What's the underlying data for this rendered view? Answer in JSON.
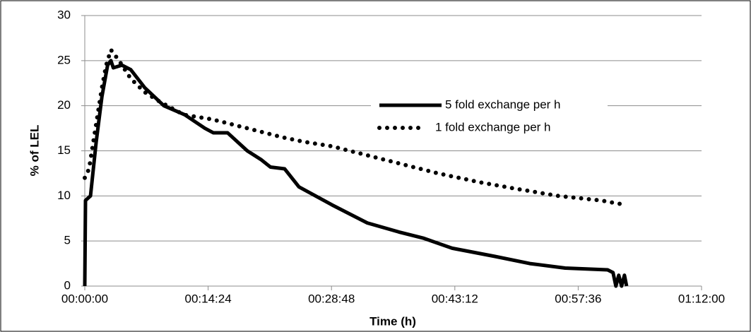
{
  "chart_data": {
    "type": "line",
    "x_label": "Time (h)",
    "y_label": "% of LEL",
    "xlim": [
      0,
      4320
    ],
    "xticks": [
      {
        "value": 0,
        "label": "00:00:00"
      },
      {
        "value": 864,
        "label": "00:14:24"
      },
      {
        "value": 1728,
        "label": "00:28:48"
      },
      {
        "value": 2592,
        "label": "00:43:12"
      },
      {
        "value": 3456,
        "label": "00:57:36"
      },
      {
        "value": 4320,
        "label": "01:12:00"
      }
    ],
    "ylim": [
      0,
      30
    ],
    "yticks": [
      0,
      5,
      10,
      15,
      20,
      25,
      30
    ],
    "grid": true,
    "legend": "upper-right",
    "series": [
      {
        "name": "5 fold exchange per h",
        "color": "#000000",
        "style": "solid",
        "x": [
          0,
          5,
          40,
          80,
          120,
          160,
          183,
          200,
          260,
          322,
          420,
          554,
          700,
          841,
          900,
          1000,
          1138,
          1237,
          1300,
          1400,
          1500,
          1732,
          1979,
          2200,
          2375,
          2573,
          2870,
          3117,
          3365,
          3662,
          3700,
          3720,
          3740,
          3760,
          3780,
          3795
        ],
        "values": [
          0,
          9.5,
          10,
          16,
          21,
          24.5,
          25,
          24.2,
          24.5,
          24,
          22,
          20,
          19,
          17.5,
          17,
          17,
          15,
          14,
          13.2,
          13,
          11,
          9,
          7,
          6,
          5.3,
          4.2,
          3.3,
          2.5,
          2,
          1.8,
          1.5,
          0,
          1.2,
          0,
          1.2,
          0
        ]
      },
      {
        "name": "1 fold exchange per h",
        "color": "#000000",
        "style": "dotted",
        "x": [
          0,
          30,
          60,
          90,
          120,
          150,
          183,
          240,
          322,
          420,
          520,
          693,
          890,
          1138,
          1385,
          1534,
          1732,
          1979,
          2227,
          2474,
          2771,
          3018,
          3315,
          3612,
          3790
        ],
        "values": [
          12,
          13,
          16,
          19,
          22,
          24.5,
          26.2,
          25,
          23,
          21.5,
          20.5,
          19,
          18.5,
          17.5,
          16.5,
          16,
          15.5,
          14.5,
          13.5,
          12.5,
          11.5,
          10.8,
          10,
          9.5,
          9
        ]
      }
    ]
  }
}
